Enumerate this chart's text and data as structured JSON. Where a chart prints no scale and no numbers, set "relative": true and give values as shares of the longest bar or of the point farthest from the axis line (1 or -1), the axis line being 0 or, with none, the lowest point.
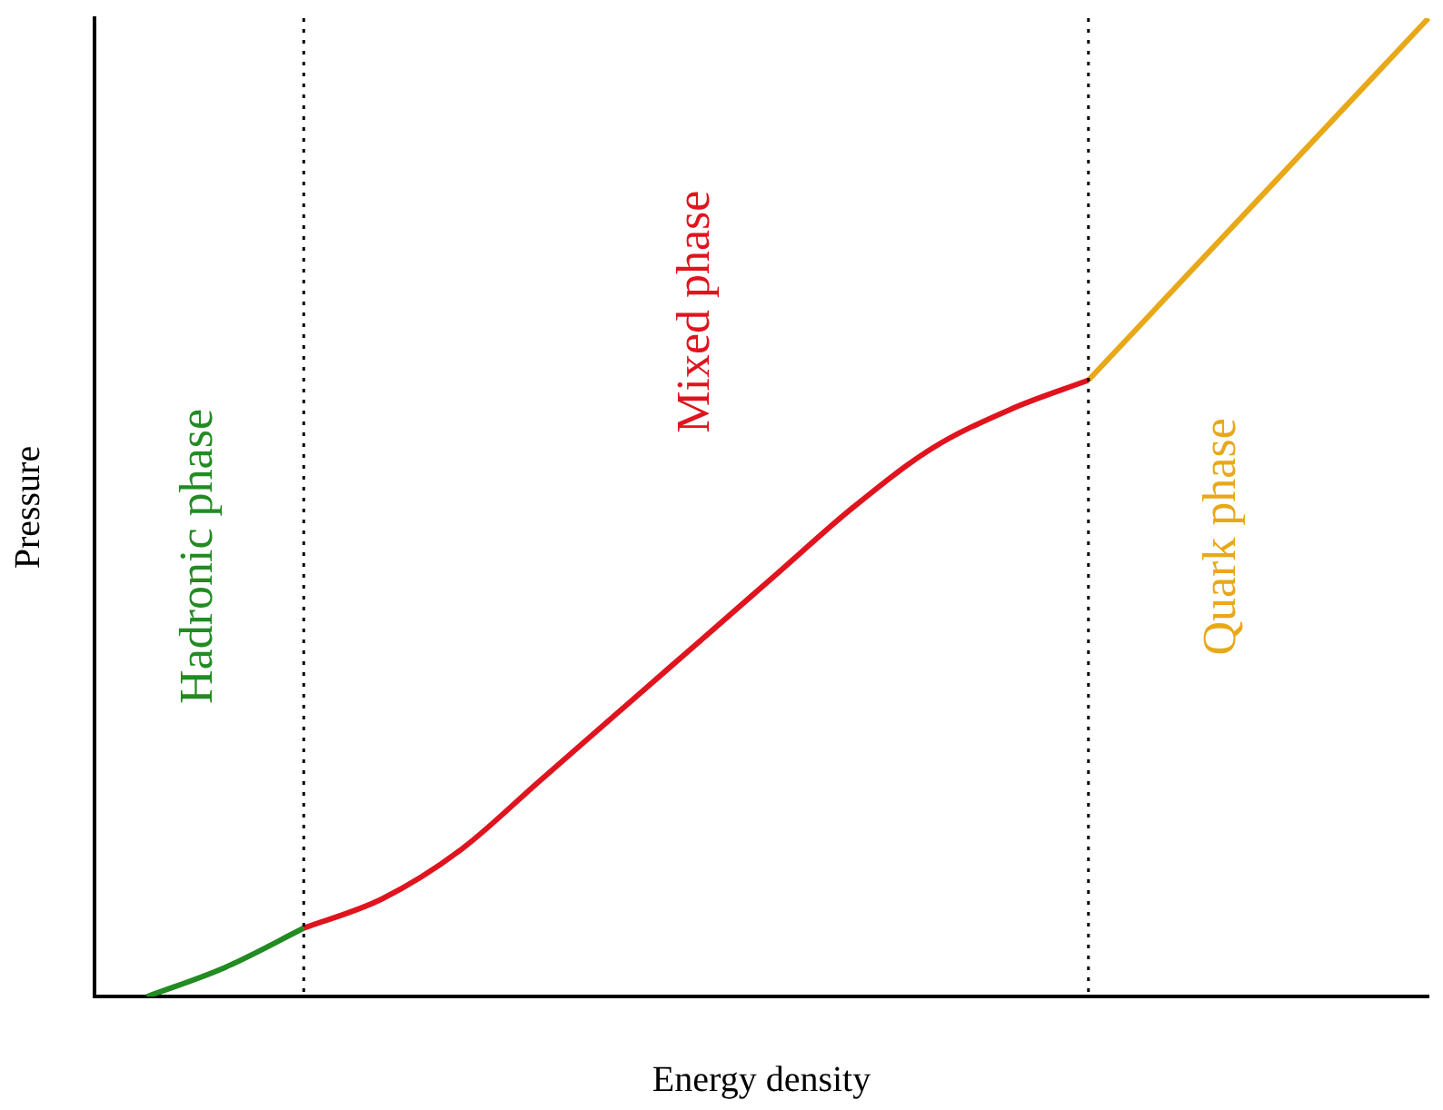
{
  "chart_data": {
    "type": "line",
    "xlabel": "Energy density",
    "ylabel": "Pressure",
    "relative": true,
    "grid": false,
    "legend": false,
    "marker": "none",
    "line_style": "solid",
    "categories": [
      null,
      null,
      null,
      null,
      null,
      null,
      null,
      null,
      null,
      null,
      null,
      null,
      null,
      null,
      null,
      null,
      null,
      null,
      null,
      null,
      null,
      null,
      null,
      null,
      null,
      null,
      null,
      null,
      null,
      null,
      null,
      null,
      null,
      null,
      null,
      null,
      null,
      null,
      null,
      null,
      null,
      null,
      null,
      null,
      null,
      null,
      null,
      null,
      null,
      null,
      null,
      null
    ],
    "series": [
      {
        "name": "Hadronic phase",
        "color": "#228b22",
        "values": [
          null,
          null,
          0,
          null,
          null,
          0.03,
          null,
          null,
          0.07,
          null,
          null,
          null,
          null,
          null,
          null,
          null,
          null,
          null,
          null,
          null,
          null,
          null,
          null,
          null,
          null,
          null,
          null,
          null,
          null,
          null,
          null,
          null,
          null,
          null,
          null,
          null,
          null,
          null,
          null,
          null,
          null,
          null,
          null,
          null,
          null,
          null,
          null,
          null,
          null,
          null,
          null,
          null
        ]
      },
      {
        "name": "Mixed phase",
        "color": "#e0141e",
        "values": [
          null,
          null,
          null,
          null,
          null,
          null,
          null,
          null,
          0.07,
          null,
          null,
          0.1,
          null,
          null,
          0.15,
          null,
          null,
          0.22,
          null,
          null,
          0.29,
          null,
          null,
          0.36,
          null,
          null,
          0.43,
          null,
          null,
          0.5,
          null,
          null,
          0.56,
          null,
          null,
          0.6,
          null,
          null,
          0.63,
          null,
          null,
          null,
          null,
          null,
          null,
          null,
          null,
          null,
          null,
          null,
          null,
          null
        ]
      },
      {
        "name": "Quark phase",
        "color": "#e8a817",
        "values": [
          null,
          null,
          null,
          null,
          null,
          null,
          null,
          null,
          null,
          null,
          null,
          null,
          null,
          null,
          null,
          null,
          null,
          null,
          null,
          null,
          null,
          null,
          null,
          null,
          null,
          null,
          null,
          null,
          null,
          null,
          null,
          null,
          null,
          null,
          null,
          null,
          null,
          null,
          0.63,
          null,
          null,
          null,
          null,
          null,
          null,
          null,
          null,
          null,
          null,
          null,
          null,
          1
        ]
      }
    ]
  }
}
